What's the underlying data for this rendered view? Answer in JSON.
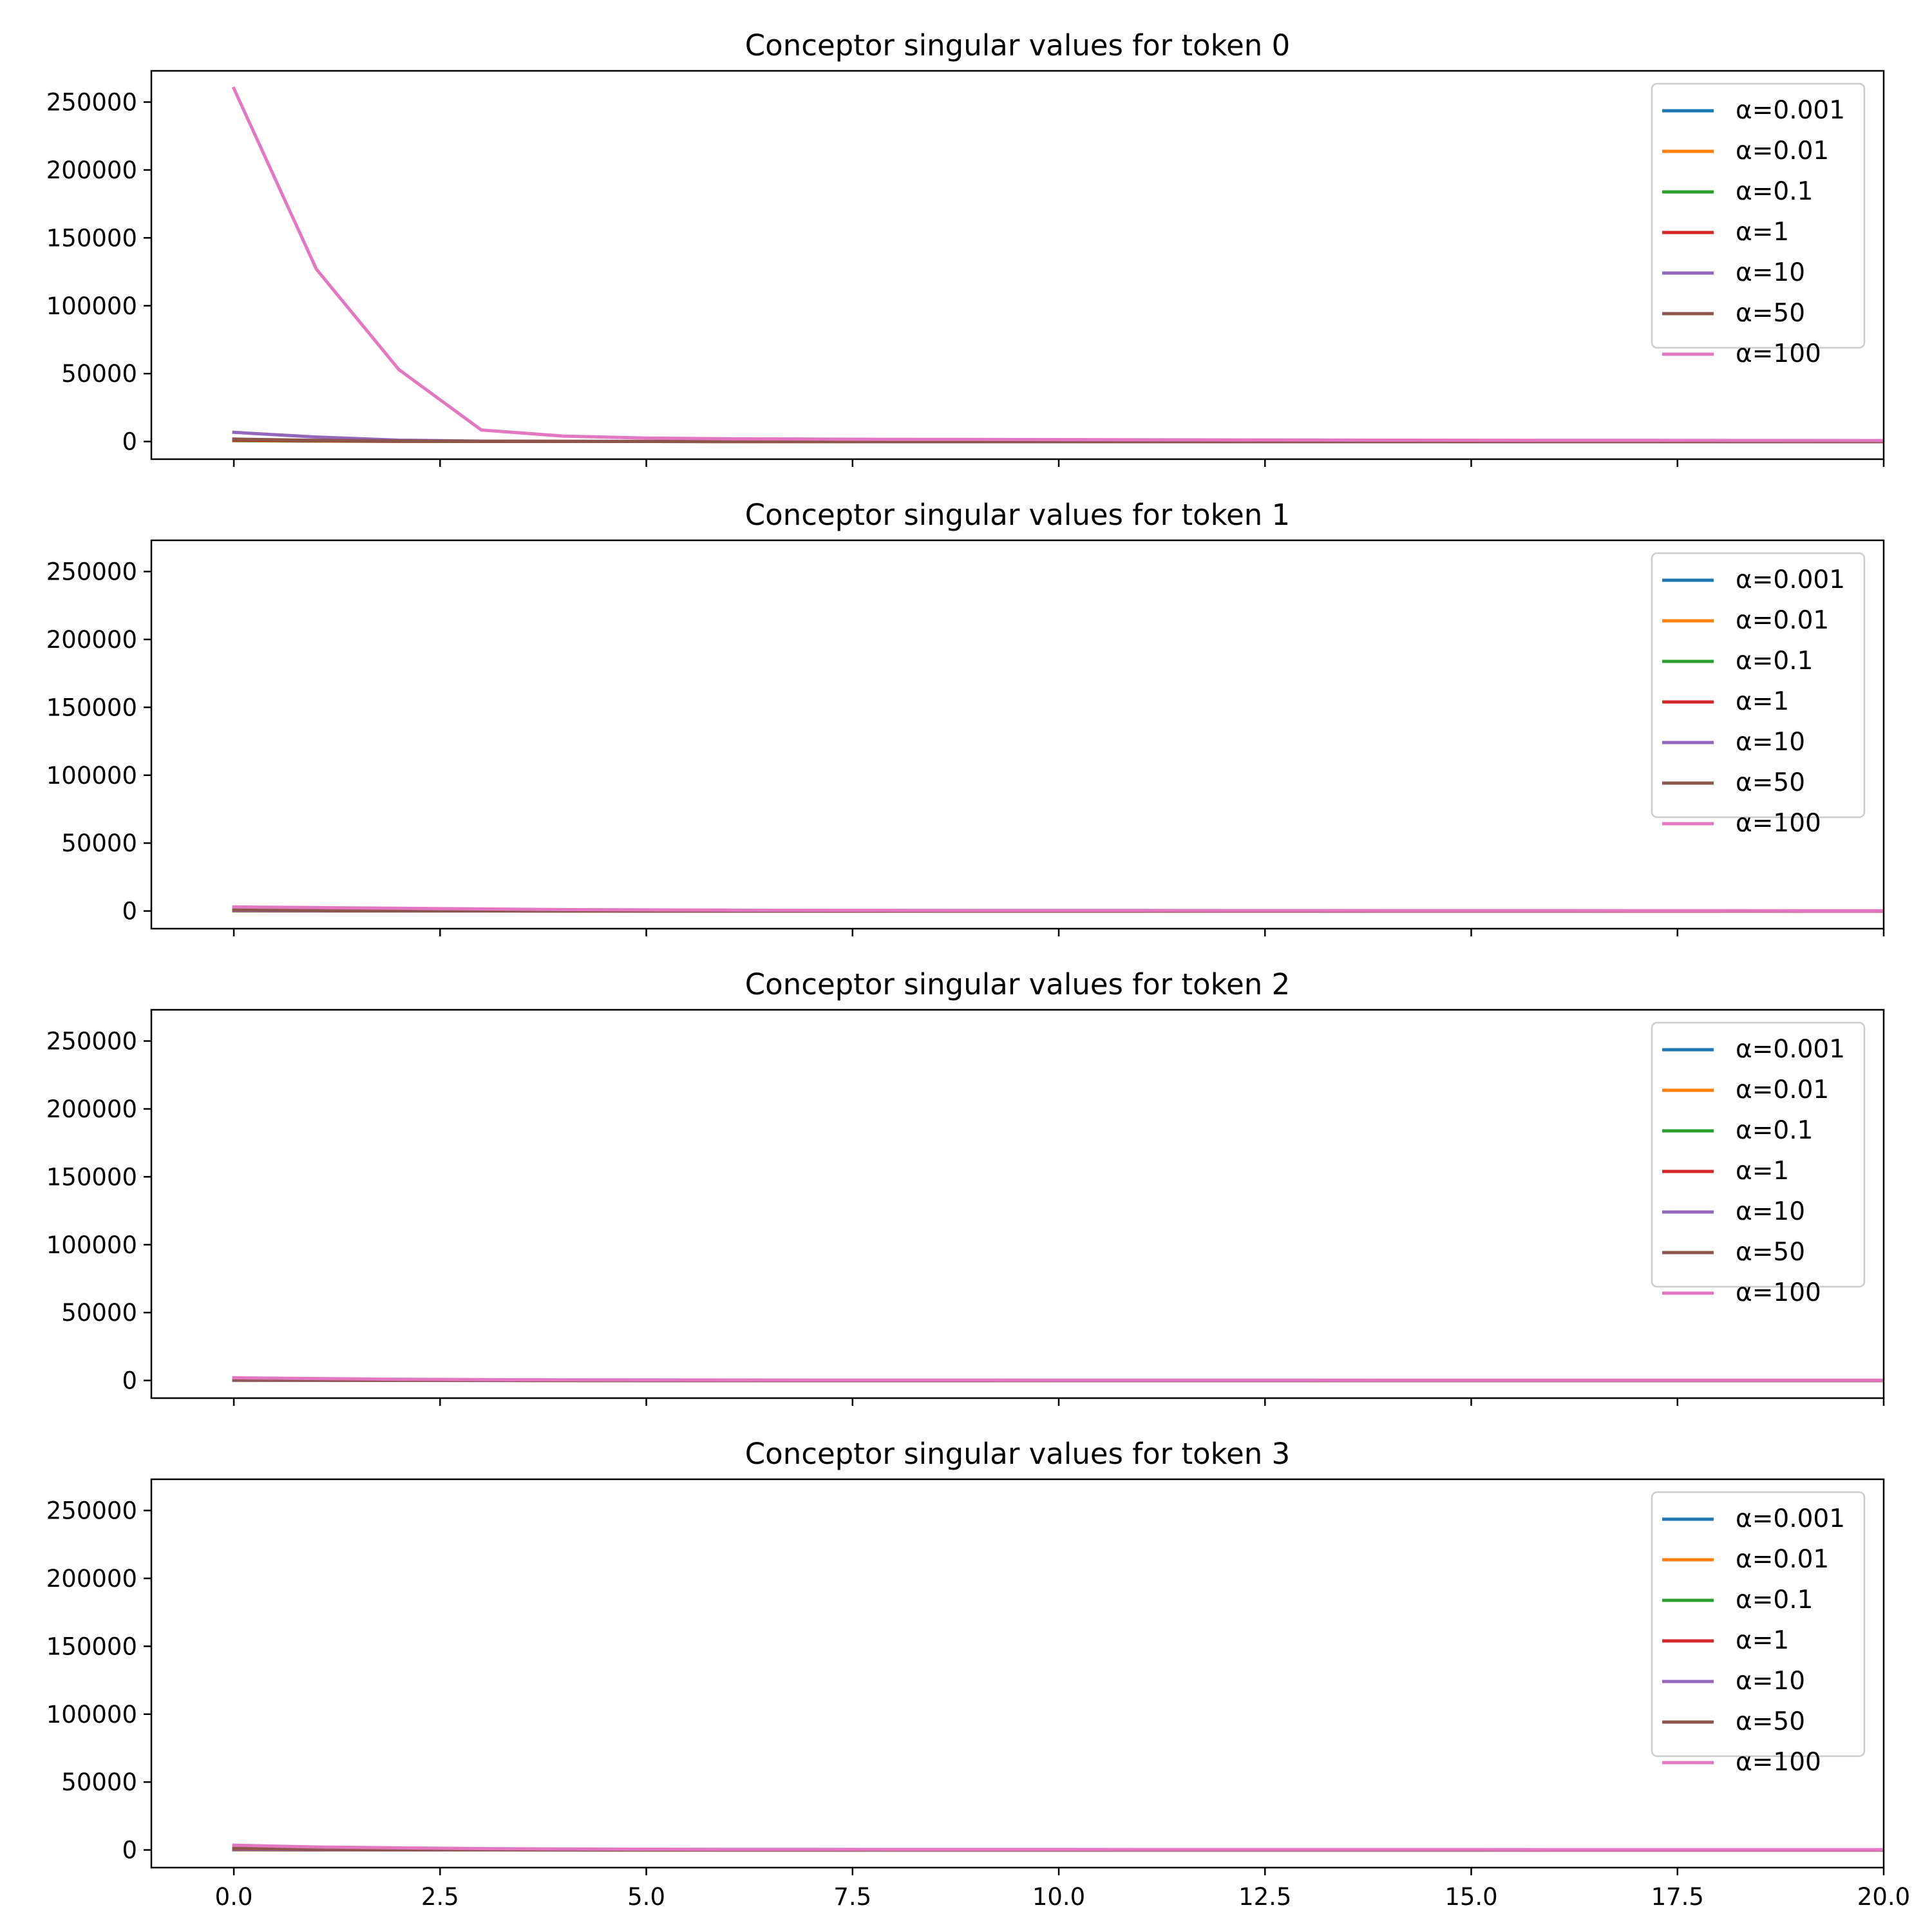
{
  "chart_data": [
    {
      "type": "line",
      "title": "Conceptor singular values for token 0",
      "xlabel": "",
      "ylabel": "",
      "xlim": [
        -1,
        20
      ],
      "ylim": [
        -13000,
        273000
      ],
      "xticks": [
        0.0,
        2.5,
        5.0,
        7.5,
        10.0,
        12.5,
        15.0,
        17.5,
        20.0
      ],
      "xtick_labels": [],
      "yticks": [
        0,
        50000,
        100000,
        150000,
        200000,
        250000
      ],
      "ytick_labels": [
        "0",
        "50000",
        "100000",
        "150000",
        "200000",
        "250000"
      ],
      "grid": false,
      "legend_position": "upper-right",
      "x": [
        0,
        1,
        2,
        3,
        4,
        5,
        6,
        7,
        8,
        9,
        10,
        11,
        12,
        13,
        14,
        15,
        16,
        17,
        18,
        19,
        20
      ],
      "series": [
        {
          "name": "α=0.001",
          "color": "#1f77b4",
          "values": [
            600,
            300,
            150,
            80,
            40,
            20,
            10,
            5,
            3,
            2,
            1,
            1,
            1,
            1,
            1,
            1,
            1,
            1,
            1,
            1,
            1
          ]
        },
        {
          "name": "α=0.01",
          "color": "#ff7f0e",
          "values": [
            700,
            350,
            170,
            90,
            45,
            22,
            11,
            6,
            3,
            2,
            1,
            1,
            1,
            1,
            1,
            1,
            1,
            1,
            1,
            1,
            1
          ]
        },
        {
          "name": "α=0.1",
          "color": "#2ca02c",
          "values": [
            900,
            450,
            200,
            100,
            50,
            25,
            12,
            6,
            3,
            2,
            1,
            1,
            1,
            1,
            1,
            1,
            1,
            1,
            1,
            1,
            1
          ]
        },
        {
          "name": "α=1",
          "color": "#d62728",
          "values": [
            1200,
            600,
            250,
            120,
            60,
            30,
            15,
            8,
            4,
            2,
            1,
            1,
            1,
            1,
            1,
            1,
            1,
            1,
            1,
            1,
            1
          ]
        },
        {
          "name": "α=10",
          "color": "#9467bd",
          "values": [
            6800,
            3300,
            1000,
            300,
            150,
            80,
            40,
            20,
            10,
            5,
            3,
            2,
            1,
            1,
            1,
            1,
            1,
            1,
            1,
            1,
            1
          ]
        },
        {
          "name": "α=50",
          "color": "#8c564b",
          "values": [
            1800,
            900,
            400,
            200,
            100,
            50,
            25,
            12,
            6,
            3,
            2,
            1,
            1,
            1,
            1,
            1,
            1,
            1,
            1,
            1,
            1
          ]
        },
        {
          "name": "α=100",
          "color": "#e377c2",
          "values": [
            260000,
            127000,
            53000,
            8500,
            4000,
            2500,
            2000,
            1800,
            1600,
            1500,
            1400,
            1300,
            1200,
            1100,
            1000,
            950,
            900,
            850,
            800,
            750,
            700
          ]
        }
      ]
    },
    {
      "type": "line",
      "title": "Conceptor singular values for token 1",
      "xlabel": "",
      "ylabel": "",
      "xlim": [
        -1,
        20
      ],
      "ylim": [
        -13000,
        273000
      ],
      "xticks": [
        0.0,
        2.5,
        5.0,
        7.5,
        10.0,
        12.5,
        15.0,
        17.5,
        20.0
      ],
      "xtick_labels": [],
      "yticks": [
        0,
        50000,
        100000,
        150000,
        200000,
        250000
      ],
      "ytick_labels": [
        "0",
        "50000",
        "100000",
        "150000",
        "200000",
        "250000"
      ],
      "grid": false,
      "legend_position": "upper-right",
      "x": [
        0,
        1,
        2,
        3,
        4,
        5,
        6,
        7,
        8,
        9,
        10,
        11,
        12,
        13,
        14,
        15,
        16,
        17,
        18,
        19,
        20
      ],
      "series": [
        {
          "name": "α=0.001",
          "color": "#1f77b4",
          "values": [
            200,
            100,
            50,
            25,
            12,
            6,
            3,
            2,
            1,
            1,
            1,
            1,
            1,
            1,
            1,
            1,
            1,
            1,
            1,
            1,
            1
          ]
        },
        {
          "name": "α=0.01",
          "color": "#ff7f0e",
          "values": [
            250,
            120,
            60,
            30,
            15,
            8,
            4,
            2,
            1,
            1,
            1,
            1,
            1,
            1,
            1,
            1,
            1,
            1,
            1,
            1,
            1
          ]
        },
        {
          "name": "α=0.1",
          "color": "#2ca02c",
          "values": [
            300,
            150,
            75,
            35,
            18,
            9,
            4,
            2,
            1,
            1,
            1,
            1,
            1,
            1,
            1,
            1,
            1,
            1,
            1,
            1,
            1
          ]
        },
        {
          "name": "α=1",
          "color": "#d62728",
          "values": [
            400,
            200,
            100,
            50,
            25,
            12,
            6,
            3,
            2,
            1,
            1,
            1,
            1,
            1,
            1,
            1,
            1,
            1,
            1,
            1,
            1
          ]
        },
        {
          "name": "α=10",
          "color": "#9467bd",
          "values": [
            600,
            300,
            150,
            75,
            35,
            18,
            9,
            4,
            2,
            1,
            1,
            1,
            1,
            1,
            1,
            1,
            1,
            1,
            1,
            1,
            1
          ]
        },
        {
          "name": "α=50",
          "color": "#8c564b",
          "values": [
            1000,
            500,
            250,
            120,
            60,
            30,
            15,
            8,
            4,
            2,
            1,
            1,
            1,
            1,
            1,
            1,
            1,
            1,
            1,
            1,
            1
          ]
        },
        {
          "name": "α=100",
          "color": "#e377c2",
          "values": [
            3000,
            2500,
            2000,
            1500,
            1000,
            800,
            600,
            500,
            450,
            400,
            380,
            360,
            340,
            320,
            300,
            280,
            260,
            240,
            220,
            200,
            180
          ]
        }
      ]
    },
    {
      "type": "line",
      "title": "Conceptor singular values for token 2",
      "xlabel": "",
      "ylabel": "",
      "xlim": [
        -1,
        20
      ],
      "ylim": [
        -13000,
        273000
      ],
      "xticks": [
        0.0,
        2.5,
        5.0,
        7.5,
        10.0,
        12.5,
        15.0,
        17.5,
        20.0
      ],
      "xtick_labels": [],
      "yticks": [
        0,
        50000,
        100000,
        150000,
        200000,
        250000
      ],
      "ytick_labels": [
        "0",
        "50000",
        "100000",
        "150000",
        "200000",
        "250000"
      ],
      "grid": false,
      "legend_position": "upper-right",
      "x": [
        0,
        1,
        2,
        3,
        4,
        5,
        6,
        7,
        8,
        9,
        10,
        11,
        12,
        13,
        14,
        15,
        16,
        17,
        18,
        19,
        20
      ],
      "series": [
        {
          "name": "α=0.001",
          "color": "#1f77b4",
          "values": [
            150,
            75,
            35,
            18,
            9,
            4,
            2,
            1,
            1,
            1,
            1,
            1,
            1,
            1,
            1,
            1,
            1,
            1,
            1,
            1,
            1
          ]
        },
        {
          "name": "α=0.01",
          "color": "#ff7f0e",
          "values": [
            180,
            90,
            45,
            22,
            11,
            5,
            3,
            1,
            1,
            1,
            1,
            1,
            1,
            1,
            1,
            1,
            1,
            1,
            1,
            1,
            1
          ]
        },
        {
          "name": "α=0.1",
          "color": "#2ca02c",
          "values": [
            220,
            110,
            55,
            27,
            13,
            6,
            3,
            2,
            1,
            1,
            1,
            1,
            1,
            1,
            1,
            1,
            1,
            1,
            1,
            1,
            1
          ]
        },
        {
          "name": "α=1",
          "color": "#d62728",
          "values": [
            300,
            150,
            75,
            35,
            18,
            9,
            4,
            2,
            1,
            1,
            1,
            1,
            1,
            1,
            1,
            1,
            1,
            1,
            1,
            1,
            1
          ]
        },
        {
          "name": "α=10",
          "color": "#9467bd",
          "values": [
            500,
            250,
            120,
            60,
            30,
            15,
            8,
            4,
            2,
            1,
            1,
            1,
            1,
            1,
            1,
            1,
            1,
            1,
            1,
            1,
            1
          ]
        },
        {
          "name": "α=50",
          "color": "#8c564b",
          "values": [
            800,
            400,
            200,
            100,
            50,
            25,
            12,
            6,
            3,
            2,
            1,
            1,
            1,
            1,
            1,
            1,
            1,
            1,
            1,
            1,
            1
          ]
        },
        {
          "name": "α=100",
          "color": "#e377c2",
          "values": [
            2000,
            1400,
            900,
            600,
            450,
            380,
            330,
            300,
            280,
            260,
            240,
            230,
            220,
            210,
            200,
            190,
            180,
            170,
            160,
            150,
            140
          ]
        }
      ]
    },
    {
      "type": "line",
      "title": "Conceptor singular values for token 3",
      "xlabel": "",
      "ylabel": "",
      "xlim": [
        -1,
        20
      ],
      "ylim": [
        -13000,
        273000
      ],
      "xticks": [
        0.0,
        2.5,
        5.0,
        7.5,
        10.0,
        12.5,
        15.0,
        17.5,
        20.0
      ],
      "xtick_labels": [
        "0.0",
        "2.5",
        "5.0",
        "7.5",
        "10.0",
        "12.5",
        "15.0",
        "17.5",
        "20.0"
      ],
      "yticks": [
        0,
        50000,
        100000,
        150000,
        200000,
        250000
      ],
      "ytick_labels": [
        "0",
        "50000",
        "100000",
        "150000",
        "200000",
        "250000"
      ],
      "grid": false,
      "legend_position": "upper-right",
      "x": [
        0,
        1,
        2,
        3,
        4,
        5,
        6,
        7,
        8,
        9,
        10,
        11,
        12,
        13,
        14,
        15,
        16,
        17,
        18,
        19,
        20
      ],
      "series": [
        {
          "name": "α=0.001",
          "color": "#1f77b4",
          "values": [
            200,
            100,
            50,
            25,
            12,
            6,
            3,
            2,
            1,
            1,
            1,
            1,
            1,
            1,
            1,
            1,
            1,
            1,
            1,
            1,
            1
          ]
        },
        {
          "name": "α=0.01",
          "color": "#ff7f0e",
          "values": [
            240,
            120,
            60,
            30,
            15,
            7,
            4,
            2,
            1,
            1,
            1,
            1,
            1,
            1,
            1,
            1,
            1,
            1,
            1,
            1,
            1
          ]
        },
        {
          "name": "α=0.1",
          "color": "#2ca02c",
          "values": [
            300,
            150,
            75,
            35,
            18,
            9,
            4,
            2,
            1,
            1,
            1,
            1,
            1,
            1,
            1,
            1,
            1,
            1,
            1,
            1,
            1
          ]
        },
        {
          "name": "α=1",
          "color": "#d62728",
          "values": [
            400,
            200,
            100,
            50,
            25,
            12,
            6,
            3,
            2,
            1,
            1,
            1,
            1,
            1,
            1,
            1,
            1,
            1,
            1,
            1,
            1
          ]
        },
        {
          "name": "α=10",
          "color": "#9467bd",
          "values": [
            700,
            350,
            170,
            85,
            40,
            20,
            10,
            5,
            3,
            2,
            1,
            1,
            1,
            1,
            1,
            1,
            1,
            1,
            1,
            1,
            1
          ]
        },
        {
          "name": "α=50",
          "color": "#8c564b",
          "values": [
            1200,
            600,
            300,
            150,
            75,
            35,
            18,
            9,
            4,
            2,
            1,
            1,
            1,
            1,
            1,
            1,
            1,
            1,
            1,
            1,
            1
          ]
        },
        {
          "name": "α=100",
          "color": "#e377c2",
          "values": [
            3500,
            2200,
            1500,
            1000,
            700,
            500,
            420,
            380,
            350,
            330,
            310,
            300,
            290,
            280,
            270,
            260,
            250,
            240,
            230,
            220,
            210
          ]
        }
      ]
    }
  ]
}
